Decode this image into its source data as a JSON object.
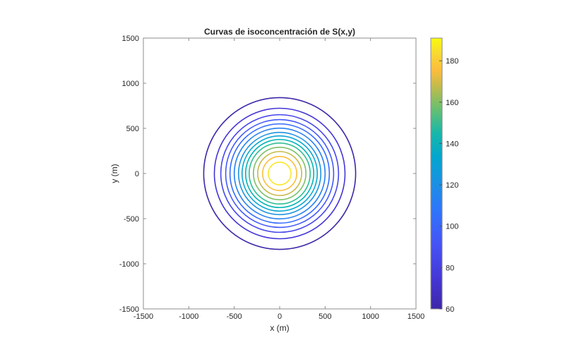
{
  "chart_data": {
    "type": "contour",
    "title": "Curvas de isoconcentración de S(x,y)",
    "xlabel": "x (m)",
    "ylabel": "y (m)",
    "xlim": [
      -1500,
      1500
    ],
    "ylim": [
      -1500,
      1500
    ],
    "xticks": [
      -1500,
      -1000,
      -500,
      0,
      500,
      1000,
      1500
    ],
    "yticks": [
      -1500,
      -1000,
      -500,
      0,
      500,
      1000,
      1500
    ],
    "grid": false,
    "center": [
      0,
      0
    ],
    "levels": [
      {
        "value": 60,
        "radius_m": 836,
        "color": "#3e26a8"
      },
      {
        "value": 70,
        "radius_m": 719,
        "color": "#4435d6"
      },
      {
        "value": 80,
        "radius_m": 648,
        "color": "#4746eb"
      },
      {
        "value": 90,
        "radius_m": 594,
        "color": "#4358f9"
      },
      {
        "value": 100,
        "radius_m": 547,
        "color": "#356bfe"
      },
      {
        "value": 110,
        "radius_m": 500,
        "color": "#2780f0"
      },
      {
        "value": 120,
        "radius_m": 453,
        "color": "#1e94e0"
      },
      {
        "value": 130,
        "radius_m": 414,
        "color": "#0ba7d2"
      },
      {
        "value": 140,
        "radius_m": 375,
        "color": "#00b3b5"
      },
      {
        "value": 150,
        "radius_m": 336,
        "color": "#2ebd95"
      },
      {
        "value": 160,
        "radius_m": 289,
        "color": "#7ebf6a"
      },
      {
        "value": 170,
        "radius_m": 242,
        "color": "#c6ba4a"
      },
      {
        "value": 180,
        "radius_m": 188,
        "color": "#fbbe3e"
      },
      {
        "value": 190,
        "radius_m": 125,
        "color": "#f9e82b"
      }
    ],
    "colorbar": {
      "min": 60,
      "max": 191,
      "ticks": [
        60,
        80,
        100,
        120,
        140,
        160,
        180
      ],
      "colormap": "parula",
      "position": "right"
    }
  }
}
